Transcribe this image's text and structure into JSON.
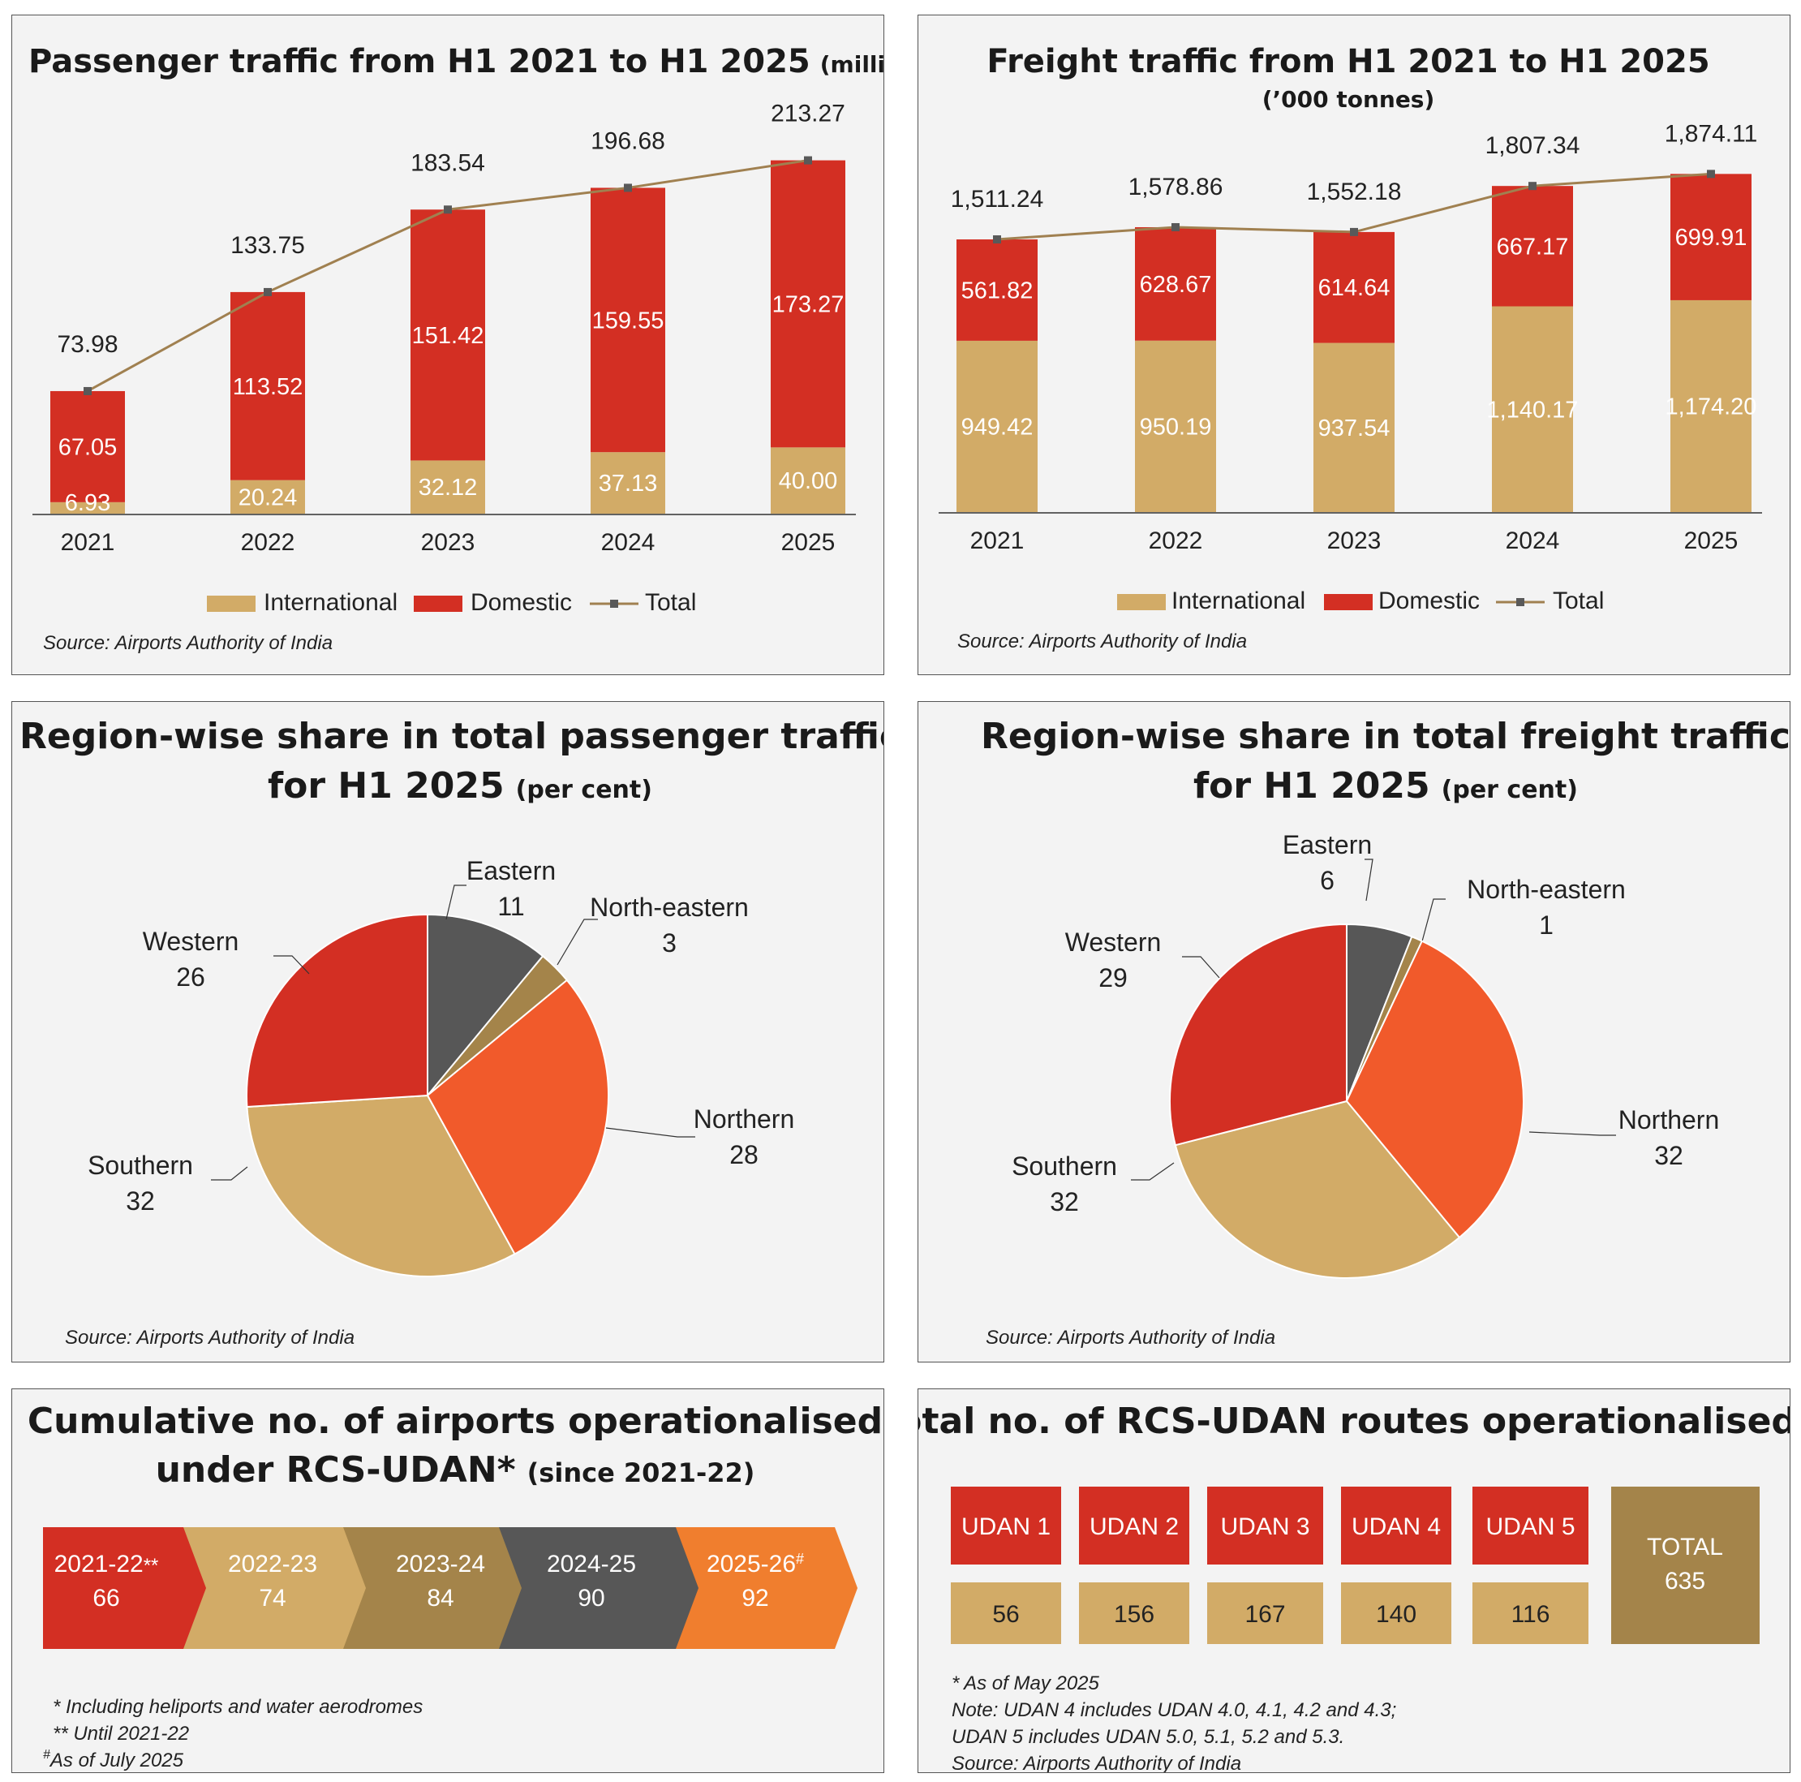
{
  "colors": {
    "international": "#d2ab67",
    "domestic": "#d32f23",
    "total_line": "#a08050",
    "marker": "#595959",
    "eastern": "#575757",
    "north_eastern": "#a4844a",
    "northern": "#f15a2b",
    "southern": "#d2ab67",
    "western": "#d32f23",
    "step_2022": "#d2ab67",
    "step_2023": "#a4844a",
    "step_2024": "#575757",
    "step_2025": "#f07e2e",
    "total_box": "#a4844a"
  },
  "legend": {
    "international": "International",
    "domestic": "Domestic",
    "total": "Total"
  },
  "source_text": "Source: Airports Authority of India",
  "chart_data": [
    {
      "type": "bar",
      "id": "passenger",
      "title": "Passenger traffic from H1 2021 to H1 2025",
      "title_unit": "(million)",
      "categories": [
        "2021",
        "2022",
        "2023",
        "2024",
        "2025"
      ],
      "series": [
        {
          "name": "International",
          "values": [
            6.93,
            20.24,
            32.12,
            37.13,
            40.0
          ],
          "labels": [
            "6.93",
            "20.24",
            "32.12",
            "37.13",
            "40.00"
          ]
        },
        {
          "name": "Domestic",
          "values": [
            67.05,
            113.52,
            151.42,
            159.55,
            173.27
          ],
          "labels": [
            "67.05",
            "113.52",
            "151.42",
            "159.55",
            "173.27"
          ]
        },
        {
          "name": "Total",
          "values": [
            73.98,
            133.75,
            183.54,
            196.68,
            213.27
          ],
          "labels": [
            "73.98",
            "133.75",
            "183.54",
            "196.68",
            "213.27"
          ]
        }
      ],
      "stacked": true,
      "ylim": [
        0,
        240
      ]
    },
    {
      "type": "bar",
      "id": "freight",
      "title": "Freight traffic from H1 2021 to H1 2025",
      "title_unit": "(’000 tonnes)",
      "categories": [
        "2021",
        "2022",
        "2023",
        "2024",
        "2025"
      ],
      "series": [
        {
          "name": "International",
          "values": [
            949.42,
            950.19,
            937.54,
            1140.17,
            1174.2
          ],
          "labels": [
            "949.42",
            "950.19",
            "937.54",
            "1,140.17",
            "1,174.20"
          ]
        },
        {
          "name": "Domestic",
          "values": [
            561.82,
            628.67,
            614.64,
            667.17,
            699.91
          ],
          "labels": [
            "561.82",
            "628.67",
            "614.64",
            "667.17",
            "699.91"
          ]
        },
        {
          "name": "Total",
          "values": [
            1511.24,
            1578.86,
            1552.18,
            1807.34,
            1874.11
          ],
          "labels": [
            "1,511.24",
            "1,578.86",
            "1,552.18",
            "1,807.34",
            "1,874.11"
          ]
        }
      ],
      "stacked": true,
      "ylim": [
        0,
        2150
      ]
    },
    {
      "type": "pie",
      "id": "passenger_region",
      "title_line1": "Region-wise share in total passenger traffic",
      "title_line2": "for H1 2025",
      "title_unit": "(per cent)",
      "slices": [
        {
          "name": "Eastern",
          "value": 11
        },
        {
          "name": "North-eastern",
          "value": 3
        },
        {
          "name": "Northern",
          "value": 28
        },
        {
          "name": "Southern",
          "value": 32
        },
        {
          "name": "Western",
          "value": 26
        }
      ]
    },
    {
      "type": "pie",
      "id": "freight_region",
      "title_line1": "Region-wise share in total freight traffic",
      "title_line2": "for H1 2025",
      "title_unit": "(per cent)",
      "slices": [
        {
          "name": "Eastern",
          "value": 6
        },
        {
          "name": "North-eastern",
          "value": 1
        },
        {
          "name": "Northern",
          "value": 32
        },
        {
          "name": "Southern",
          "value": 32
        },
        {
          "name": "Western",
          "value": 29
        }
      ]
    },
    {
      "type": "table",
      "id": "airports_cumulative",
      "title_line1": "Cumulative no. of airports operationalised",
      "title_line2": "under RCS-UDAN*",
      "title_unit": "(since 2021-22)",
      "steps": [
        {
          "period": "2021-22",
          "mark": "**",
          "value": 66
        },
        {
          "period": "2022-23",
          "mark": "",
          "value": 74
        },
        {
          "period": "2023-24",
          "mark": "",
          "value": 84
        },
        {
          "period": "2024-25",
          "mark": "",
          "value": 90
        },
        {
          "period": "2025-26",
          "mark": "#",
          "value": 92
        }
      ],
      "notes": [
        "* Including heliports and water aerodromes",
        "**  Until 2021-22",
        "As of July 2025"
      ],
      "note_hash": "#"
    },
    {
      "type": "table",
      "id": "udan_routes",
      "title": "Total no. of RCS-UDAN routes operationalised*",
      "routes": [
        {
          "name": "UDAN 1",
          "value": 56
        },
        {
          "name": "UDAN 2",
          "value": 156
        },
        {
          "name": "UDAN 3",
          "value": 167
        },
        {
          "name": "UDAN 4",
          "value": 140
        },
        {
          "name": "UDAN 5",
          "value": 116
        }
      ],
      "total_label": "TOTAL",
      "total_value": 635,
      "notes": [
        "* As of May 2025",
        "Note: UDAN 4 includes UDAN 4.0, 4.1, 4.2 and 4.3;",
        "UDAN 5 includes UDAN 5.0, 5.1, 5.2 and 5.3.",
        "Source: Airports Authority of India"
      ]
    }
  ]
}
